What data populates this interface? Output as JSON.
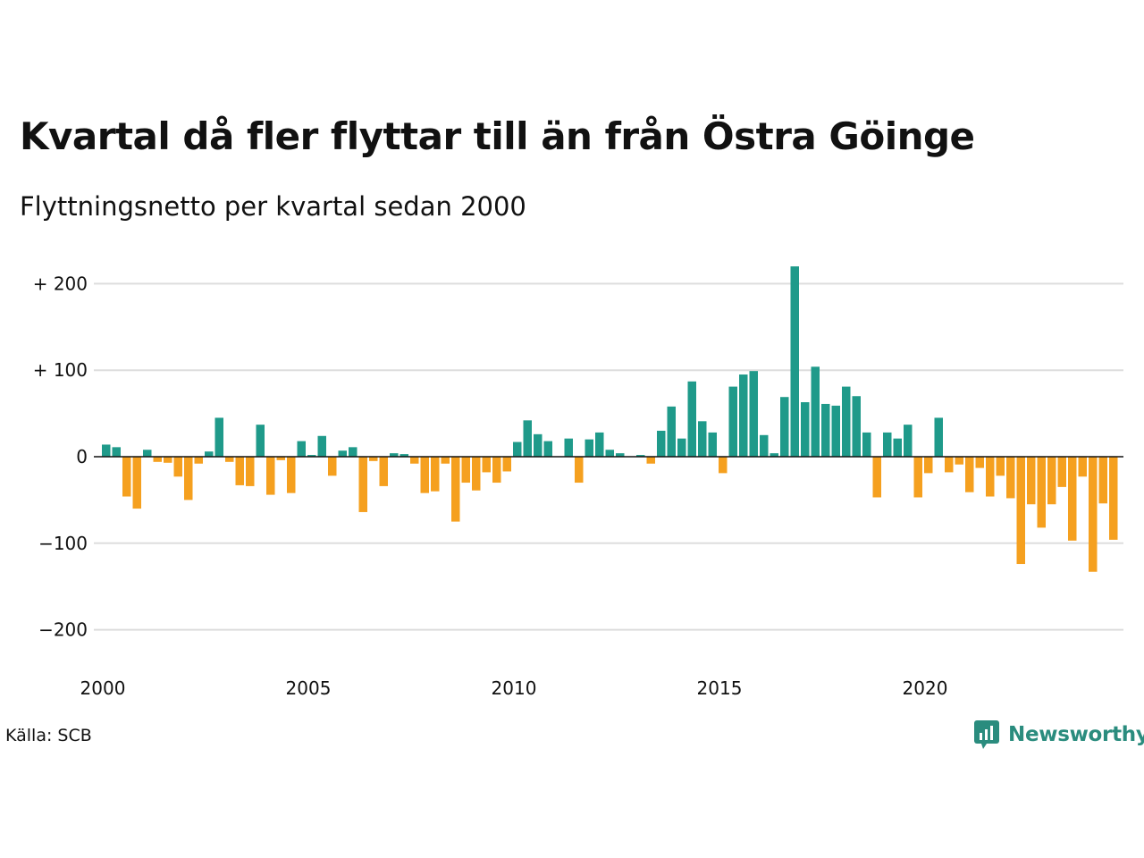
{
  "title": "Kvartal då fler flyttar till än från Östra Göinge",
  "subtitle": "Flyttningsnetto per kvartal sedan 2000",
  "source": "Källa: SCB",
  "logo_text": "Newsworthy",
  "colors": {
    "positive": "#1f9a8a",
    "negative": "#f5a01f",
    "grid": "#dddddd",
    "zero": "#111111",
    "brand": "#2a8c7e"
  },
  "chart_data": {
    "type": "bar",
    "title": "Kvartal då fler flyttar till än från Östra Göinge",
    "subtitle": "Flyttningsnetto per kvartal sedan 2000",
    "xlabel": "",
    "ylabel": "",
    "ylim": [
      -200,
      220
    ],
    "grid": true,
    "y_ticks": [
      {
        "value": 200,
        "label": "+ 200"
      },
      {
        "value": 100,
        "label": "+ 100"
      },
      {
        "value": 0,
        "label": "0"
      },
      {
        "value": -100,
        "label": "−100"
      },
      {
        "value": -200,
        "label": "−200"
      }
    ],
    "x_ticks": [
      {
        "value": 2000,
        "label": "2000"
      },
      {
        "value": 2005,
        "label": "2005"
      },
      {
        "value": 2010,
        "label": "2010"
      },
      {
        "value": 2015,
        "label": "2015"
      },
      {
        "value": 2020,
        "label": "2020"
      }
    ],
    "start_year": 2000,
    "values": [
      14,
      11,
      -46,
      -60,
      8,
      -6,
      -7,
      -23,
      -50,
      -8,
      6,
      45,
      -6,
      -33,
      -34,
      37,
      -44,
      -4,
      -42,
      18,
      2,
      24,
      -22,
      7,
      11,
      -64,
      -5,
      -34,
      4,
      3,
      -8,
      -42,
      -40,
      -8,
      -75,
      -30,
      -39,
      -18,
      -30,
      -17,
      17,
      42,
      26,
      18,
      0,
      21,
      -30,
      20,
      28,
      8,
      4,
      0,
      2,
      -8,
      30,
      58,
      21,
      87,
      41,
      28,
      -19,
      81,
      95,
      99,
      25,
      4,
      69,
      220,
      63,
      104,
      61,
      59,
      81,
      70,
      28,
      -47,
      28,
      21,
      37,
      -47,
      -19,
      45,
      -18,
      -9,
      -41,
      -13,
      -46,
      -22,
      -48,
      -124,
      -55,
      -82,
      -55,
      -35,
      -97,
      -23,
      -133,
      -54,
      -96
    ]
  }
}
